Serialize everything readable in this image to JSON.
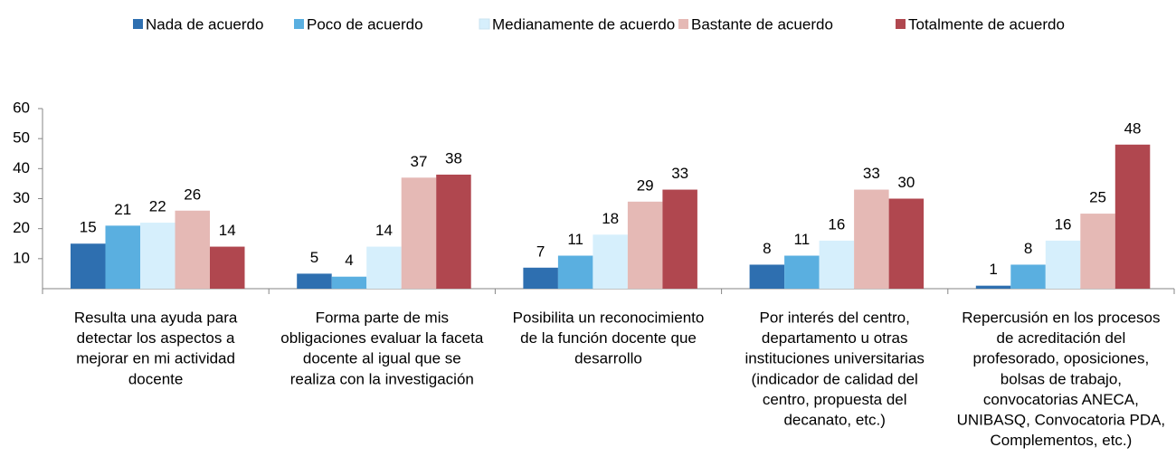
{
  "chart_data": {
    "type": "bar",
    "categories": [
      [
        "Resulta una ayuda para",
        "detectar los aspectos a",
        "mejorar en mi actividad",
        "docente"
      ],
      [
        "Forma parte de mis",
        "obligaciones evaluar la faceta",
        "docente al igual que se",
        "realiza con la investigación"
      ],
      [
        "Posibilita un reconocimiento",
        "de la función docente que",
        "desarrollo"
      ],
      [
        "Por interés del centro,",
        "departamento u otras",
        "instituciones universitarias",
        "(indicador de calidad del",
        "centro, propuesta del",
        "decanato, etc.)"
      ],
      [
        "Repercusión en los procesos",
        "de acreditación del",
        "profesorado, oposiciones,",
        "bolsas de trabajo,",
        "convocatorias ANECA,",
        "UNIBASQ, Convocatoria PDA,",
        "Complementos, etc.)"
      ]
    ],
    "series": [
      {
        "name": "Nada de acuerdo",
        "color": "#2e6fb0",
        "values": [
          15,
          5,
          7,
          8,
          1
        ]
      },
      {
        "name": "Poco de acuerdo",
        "color": "#5aafe0",
        "values": [
          21,
          4,
          11,
          11,
          8
        ]
      },
      {
        "name": "Medianamente de acuerdo",
        "color": "#d6effc",
        "values": [
          22,
          14,
          18,
          16,
          16
        ]
      },
      {
        "name": "Bastante de acuerdo",
        "color": "#e5b9b5",
        "values": [
          26,
          37,
          29,
          33,
          25
        ]
      },
      {
        "name": "Totalmente de acuerdo",
        "color": "#b0474f",
        "values": [
          14,
          38,
          33,
          30,
          48
        ]
      }
    ],
    "ylim": [
      0,
      60
    ],
    "yticks": [
      10,
      20,
      30,
      40,
      50,
      60
    ],
    "legend": "top"
  }
}
